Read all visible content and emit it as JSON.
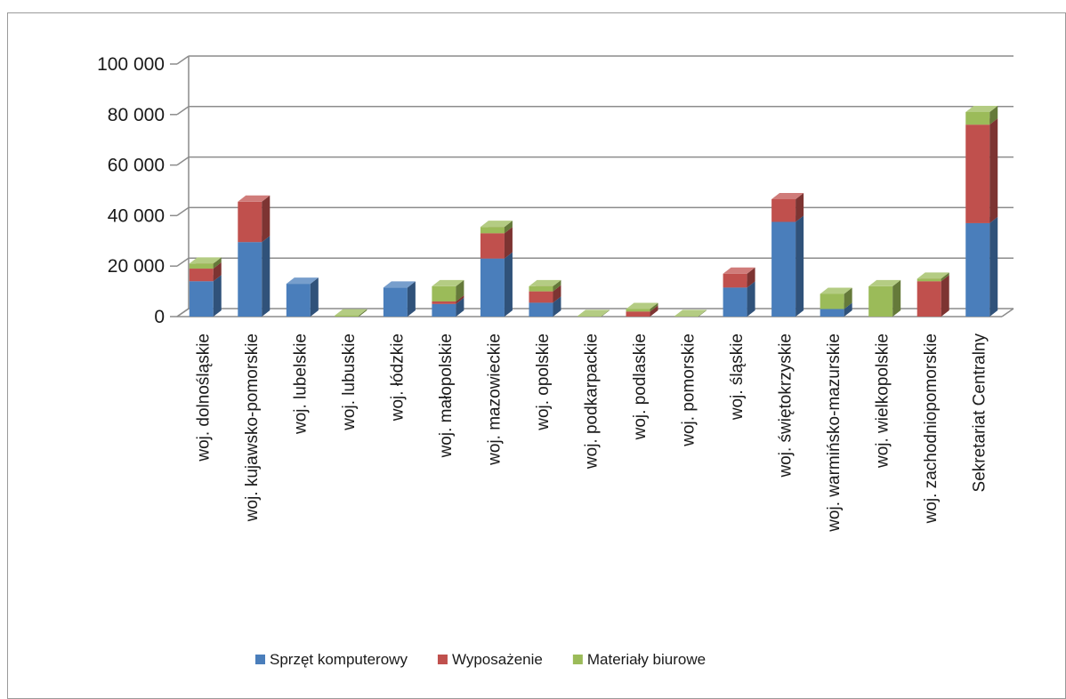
{
  "chart_data": {
    "type": "bar",
    "stacked": true,
    "three_d": true,
    "categories": [
      "woj. dolnośląskie",
      "woj. kujawsko-pomorskie",
      "woj. lubelskie",
      "woj. lubuskie",
      "woj. łódzkie",
      "woj. małopolskie",
      "woj. mazowieckie",
      "woj. opolskie",
      "woj. podkarpackie",
      "woj. podlaskie",
      "woj. pomorskie",
      "woj. śląskie",
      "woj. świętokrzyskie",
      "woj. warmińsko-mazurskie",
      "woj. wielkopolskie",
      "woj. zachodniopomorskie",
      "Sekretariat Centralny"
    ],
    "series": [
      {
        "name": "Sprzęt komputerowy",
        "color": "#4a7ebb",
        "values": [
          14000,
          29500,
          13000,
          0,
          11500,
          5000,
          23000,
          5500,
          0,
          0,
          0,
          11500,
          37500,
          3000,
          0,
          0,
          37000
        ]
      },
      {
        "name": "Wyposażenie",
        "color": "#c0504d",
        "values": [
          5000,
          16000,
          0,
          0,
          0,
          1000,
          10000,
          4500,
          0,
          2000,
          0,
          5500,
          9000,
          0,
          0,
          14000,
          39000
        ]
      },
      {
        "name": "Materiały biurowe",
        "color": "#9bbb59",
        "values": [
          2000,
          0,
          0,
          500,
          0,
          6000,
          2500,
          2000,
          200,
          1000,
          200,
          0,
          0,
          6000,
          12000,
          1000,
          5000
        ]
      }
    ],
    "ylim": [
      0,
      100000
    ],
    "yticks": [
      0,
      20000,
      40000,
      60000,
      80000,
      100000
    ],
    "ytick_labels": [
      "0",
      "20 000",
      "40 000",
      "60 000",
      "80 000",
      "100 000"
    ],
    "grid": true,
    "legend_position": "bottom"
  }
}
